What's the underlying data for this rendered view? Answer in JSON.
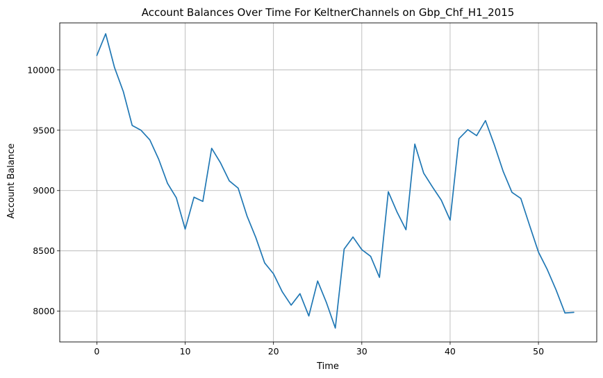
{
  "chart_data": {
    "type": "line",
    "title": "Account Balances Over Time For KeltnerChannels on Gbp_Chf_H1_2015",
    "xlabel": "Time",
    "ylabel": "Account Balance",
    "xlim": [
      -4.2,
      56.6
    ],
    "ylim": [
      7745,
      10390
    ],
    "xticks": [
      0,
      10,
      20,
      30,
      40,
      50
    ],
    "yticks": [
      8000,
      8500,
      9000,
      9500,
      10000
    ],
    "grid": true,
    "line_color": "#1f77b4",
    "series": [
      {
        "x": [
          0,
          1,
          2,
          3,
          4,
          5,
          6,
          7,
          8,
          9,
          10,
          11,
          12,
          13,
          14,
          15,
          16,
          17,
          18,
          19,
          20,
          21,
          22,
          23,
          24,
          25,
          26,
          27,
          28,
          29,
          30,
          31,
          32,
          33,
          34,
          35,
          36,
          37,
          38,
          39,
          40,
          41,
          42,
          43,
          44,
          45,
          46,
          47,
          48,
          49,
          50,
          51,
          52,
          53,
          54
        ],
        "values": [
          10120,
          10300,
          10020,
          9820,
          9540,
          9500,
          9420,
          9260,
          9060,
          8940,
          8680,
          8945,
          8910,
          9350,
          9230,
          9080,
          9020,
          8790,
          8610,
          8400,
          8310,
          8160,
          8050,
          8145,
          7960,
          8250,
          8070,
          7860,
          8515,
          8615,
          8510,
          8455,
          8280,
          8990,
          8820,
          8675,
          9385,
          9145,
          9030,
          8920,
          8755,
          9430,
          9505,
          9455,
          9580,
          9380,
          9160,
          8985,
          8935,
          8710,
          8490,
          8345,
          8175,
          7985,
          7990
        ]
      }
    ]
  }
}
